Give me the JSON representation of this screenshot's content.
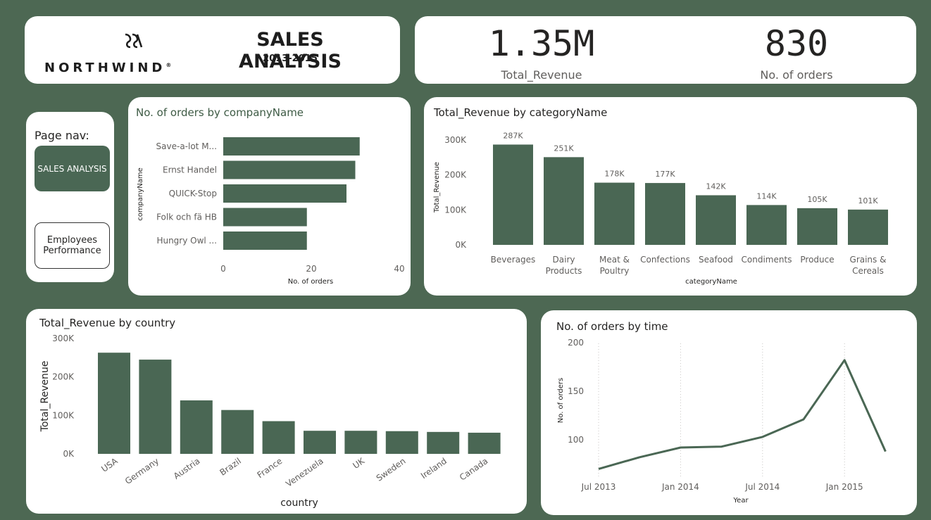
{
  "header": {
    "logo_text": "NORTHWIND",
    "logo_mark": "®",
    "title": "SALES ANALYSIS",
    "subtitle": "2013-2015"
  },
  "kpis": {
    "revenue_value": "1.35M",
    "revenue_label": "Total_Revenue",
    "orders_value": "830",
    "orders_label": "No. of orders"
  },
  "nav": {
    "title": "Page nav:",
    "active_label": "SALES ANALYSIS",
    "other_label_line1": "Employees",
    "other_label_line2": "Performance"
  },
  "colors": {
    "bar": "#4a6754",
    "background": "#4d6853",
    "title_green": "#3e5b45"
  },
  "chart_data": [
    {
      "id": "orders_by_company",
      "type": "bar",
      "orientation": "horizontal",
      "title": "No. of orders by companyName",
      "xlabel": "No. of orders",
      "ylabel": "companyName",
      "categories": [
        "Save-a-lot M...",
        "Ernst Handel",
        "QUICK-Stop",
        "Folk och fä HB",
        "Hungry Owl ..."
      ],
      "values": [
        31,
        30,
        28,
        19,
        19
      ],
      "xlim": [
        0,
        40
      ],
      "xticks": [
        "0",
        "20",
        "40"
      ],
      "grid": false
    },
    {
      "id": "revenue_by_category",
      "type": "bar",
      "title": "Total_Revenue by categoryName",
      "xlabel": "categoryName",
      "ylabel": "Total_Revenue",
      "categories": [
        [
          "Beverages"
        ],
        [
          "Dairy",
          "Products"
        ],
        [
          "Meat &",
          "Poultry"
        ],
        [
          "Confections"
        ],
        [
          "Seafood"
        ],
        [
          "Condiments"
        ],
        [
          "Produce"
        ],
        [
          "Grains &",
          "Cereals"
        ]
      ],
      "values": [
        287,
        251,
        178,
        177,
        142,
        114,
        105,
        101
      ],
      "data_labels": [
        "287K",
        "251K",
        "178K",
        "177K",
        "142K",
        "114K",
        "105K",
        "101K"
      ],
      "ylim": [
        0,
        300
      ],
      "yticks": [
        "0K",
        "100K",
        "200K",
        "300K"
      ],
      "grid": false
    },
    {
      "id": "revenue_by_country",
      "type": "bar",
      "title": "Total_Revenue by country",
      "xlabel": "country",
      "ylabel": "Total_Revenue",
      "categories": [
        "USA",
        "Germany",
        "Austria",
        "Brazil",
        "France",
        "Venezuela",
        "UK",
        "Sweden",
        "Ireland",
        "Canada"
      ],
      "values": [
        263,
        245,
        139,
        114,
        85,
        60,
        60,
        59,
        57,
        55
      ],
      "ylim": [
        0,
        300
      ],
      "yticks": [
        "0K",
        "100K",
        "200K",
        "300K"
      ],
      "grid": false
    },
    {
      "id": "orders_by_time",
      "type": "line",
      "title": "No. of orders by time",
      "xlabel": "Year",
      "ylabel": "No. of orders",
      "x": [
        "2013-07",
        "2013-10",
        "2014-01",
        "2014-04",
        "2014-07",
        "2014-10",
        "2015-01",
        "2015-04"
      ],
      "y": [
        70,
        82,
        92,
        93,
        103,
        121,
        182,
        88
      ],
      "xticks": [
        "Jul 2013",
        "Jan 2014",
        "Jul 2014",
        "Jan 2015"
      ],
      "yticks": [
        "100",
        "150",
        "200"
      ],
      "ylim": [
        60,
        200
      ],
      "grid": "vertical dotted"
    }
  ]
}
